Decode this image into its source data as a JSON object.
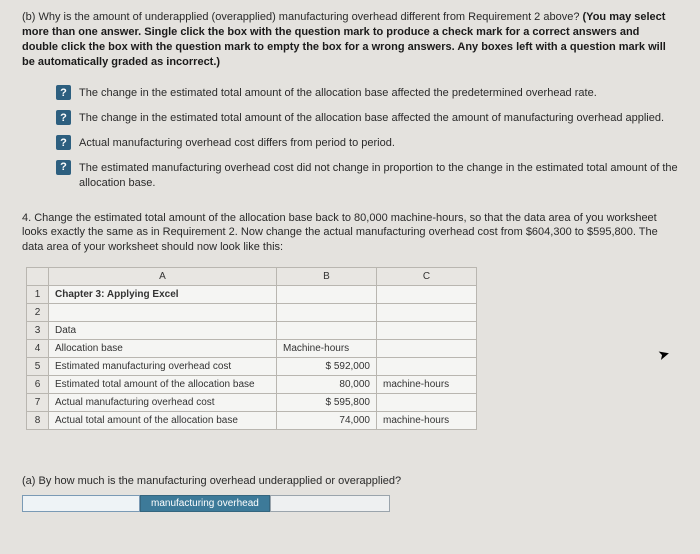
{
  "question_b": {
    "prefix": "(b) Why is the amount of underapplied (overapplied) manufacturing overhead different from Requirement 2 above? ",
    "bold": "(You may select more than one answer. Single click the box with the question mark to produce a check mark for a correct answers and double click the box with the question mark to empty the box for a wrong answers. Any boxes left with a question mark will be automatically graded as incorrect.)"
  },
  "checkbox_glyph": "?",
  "options": [
    "The change in the estimated total amount of the allocation base affected the predetermined overhead rate.",
    "The change in the estimated total amount of the allocation base affected the amount of manufacturing overhead applied.",
    "Actual manufacturing overhead cost differs from period to period.",
    "The estimated manufacturing overhead cost did not change in proportion to the change in the estimated total amount of the allocation base."
  ],
  "para4": "4. Change the estimated total amount of the allocation base back to 80,000 machine-hours, so that the data area of you worksheet looks exactly the same as in Requirement 2. Now change the actual manufacturing overhead cost from $604,300 to $595,800. The data area of your worksheet should now look like this:",
  "sheet": {
    "headers": [
      "",
      "A",
      "B",
      "C"
    ],
    "rows": [
      {
        "n": "1",
        "a": "Chapter 3: Applying Excel",
        "b": "",
        "c": "",
        "a_class": "chapter"
      },
      {
        "n": "2",
        "a": "",
        "b": "",
        "c": ""
      },
      {
        "n": "3",
        "a": "Data",
        "b": "",
        "c": ""
      },
      {
        "n": "4",
        "a": "Allocation base",
        "b": "Machine-hours",
        "c": "",
        "b_align": "left"
      },
      {
        "n": "5",
        "a": "Estimated manufacturing overhead cost",
        "b": "$      592,000",
        "c": ""
      },
      {
        "n": "6",
        "a": "Estimated total amount of the allocation base",
        "b": "80,000",
        "c": "machine-hours"
      },
      {
        "n": "7",
        "a": "Actual manufacturing overhead cost",
        "b": "$      595,800",
        "c": ""
      },
      {
        "n": "8",
        "a": "Actual total amount of the allocation base",
        "b": "74,000",
        "c": "machine-hours"
      }
    ]
  },
  "question_a": "(a) By how much is the manufacturing overhead underapplied or overapplied?",
  "answer_label": "manufacturing overhead"
}
